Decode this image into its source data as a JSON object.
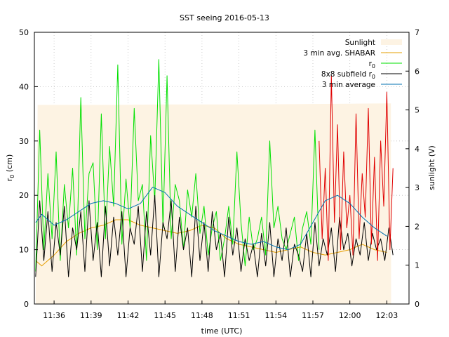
{
  "chart_data": {
    "type": "line",
    "title": "SST seeing 2016-05-13",
    "xlabel": "time (UTC)",
    "ylabel": "r0 (cm)",
    "ylabel_main": "r",
    "ylabel_sub": "0",
    "ylabel_tail": " (cm)",
    "y2label": "sunlight (V)",
    "xlim": [
      "11:34:24",
      "12:04:48"
    ],
    "ylim": [
      0,
      50
    ],
    "y2lim": [
      0,
      7
    ],
    "xticks": [
      "11:36",
      "11:39",
      "11:42",
      "11:45",
      "11:48",
      "11:51",
      "11:54",
      "11:57",
      "12:00",
      "12:03"
    ],
    "yticks": [
      0,
      10,
      20,
      30,
      40,
      50
    ],
    "y2ticks": [
      0,
      1,
      2,
      3,
      4,
      5,
      6,
      7
    ],
    "grid": true,
    "legend": "top-right",
    "legend_entries": [
      {
        "label": "Sunlight",
        "sub": "",
        "color": "#fdf3e3",
        "kind": "box"
      },
      {
        "label": "3 min avg. SHABAR",
        "sub": "",
        "color": "#e69f00",
        "kind": "line"
      },
      {
        "label": "r",
        "sub": "0",
        "color": "#00e000",
        "kind": "line"
      },
      {
        "label": "8x8 subfield r",
        "sub": "0",
        "color": "#000000",
        "kind": "line"
      },
      {
        "label": "3 min average",
        "sub": "",
        "color": "#0072b2",
        "kind": "line"
      }
    ],
    "series": [
      {
        "name": "Sunlight",
        "axis": "y2",
        "color": "#fdf3e3",
        "x": [
          "11:34:30",
          "11:34:40",
          "11:41:00",
          "11:45:00",
          "11:48:00",
          "11:52:00",
          "11:56:00",
          "12:00:00",
          "12:03:00",
          "12:03:20",
          "12:03:21"
        ],
        "values": [
          0,
          5.13,
          5.13,
          5.14,
          5.14,
          5.14,
          5.15,
          5.16,
          5.17,
          5.17,
          0
        ]
      },
      {
        "name": "3 min avg. SHABAR",
        "axis": "y",
        "color": "#e69f00",
        "x": [
          "11:34:30",
          "11:35:00",
          "11:36:00",
          "11:37:00",
          "11:38:00",
          "11:39:00",
          "11:40:00",
          "11:41:00",
          "11:42:00",
          "11:43:00",
          "11:44:00",
          "11:45:00",
          "11:46:00",
          "11:47:00",
          "11:48:00",
          "11:49:00",
          "11:50:00",
          "11:51:00",
          "11:52:00",
          "11:53:00",
          "11:54:00",
          "11:55:00",
          "11:56:00",
          "11:57:00",
          "11:58:00",
          "11:59:00",
          "12:00:00",
          "12:01:00",
          "12:02:00",
          "12:03:00"
        ],
        "values": [
          8.0,
          7.0,
          9.0,
          11.5,
          13.0,
          14.0,
          14.5,
          15.5,
          15.5,
          14.5,
          14.0,
          13.5,
          13.0,
          13.5,
          14.5,
          14.0,
          12.0,
          11.0,
          10.5,
          10.0,
          9.5,
          10.0,
          10.5,
          9.5,
          9.0,
          9.5,
          10.0,
          11.0,
          10.0,
          9.5
        ]
      },
      {
        "name": "r0",
        "axis": "y",
        "color": "#00e000",
        "x": [
          "11:34:30",
          "11:34:50",
          "11:35:10",
          "11:35:30",
          "11:35:50",
          "11:36:10",
          "11:36:30",
          "11:36:50",
          "11:37:10",
          "11:37:30",
          "11:37:50",
          "11:38:10",
          "11:38:30",
          "11:38:50",
          "11:39:10",
          "11:39:30",
          "11:39:50",
          "11:40:10",
          "11:40:30",
          "11:40:50",
          "11:41:10",
          "11:41:30",
          "11:41:50",
          "11:42:10",
          "11:42:30",
          "11:42:50",
          "11:43:10",
          "11:43:30",
          "11:43:50",
          "11:44:10",
          "11:44:30",
          "11:44:50",
          "11:45:10",
          "11:45:30",
          "11:45:50",
          "11:46:10",
          "11:46:30",
          "11:46:50",
          "11:47:10",
          "11:47:30",
          "11:47:50",
          "11:48:10",
          "11:48:30",
          "11:48:50",
          "11:49:10",
          "11:49:30",
          "11:49:50",
          "11:50:10",
          "11:50:30",
          "11:50:50",
          "11:51:10",
          "11:51:30",
          "11:51:50",
          "11:52:10",
          "11:52:30",
          "11:52:50",
          "11:53:10",
          "11:53:30",
          "11:53:50",
          "11:54:10",
          "11:54:30",
          "11:54:50",
          "11:55:10",
          "11:55:30",
          "11:55:50",
          "11:56:10",
          "11:56:30",
          "11:56:50",
          "11:57:10",
          "11:57:30"
        ],
        "values": [
          6,
          32,
          10,
          24,
          12,
          28,
          8,
          22,
          14,
          25,
          9,
          38,
          12,
          24,
          26,
          10,
          35,
          12,
          29,
          18,
          44,
          11,
          23,
          14,
          36,
          19,
          22,
          8,
          31,
          19,
          45,
          14,
          42,
          12,
          22,
          19,
          10,
          21,
          16,
          24,
          13,
          18,
          9,
          14,
          17,
          8,
          12,
          18,
          11,
          28,
          15,
          7,
          16,
          10,
          12,
          16,
          9,
          30,
          14,
          18,
          12,
          10,
          13,
          16,
          8,
          14,
          17,
          11,
          32,
          10
        ]
      },
      {
        "name": "8x8 subfield r0",
        "axis": "y",
        "color": "#000000",
        "x": [
          "11:34:30",
          "11:34:50",
          "11:35:10",
          "11:35:30",
          "11:35:50",
          "11:36:10",
          "11:36:30",
          "11:36:50",
          "11:37:10",
          "11:37:30",
          "11:37:50",
          "11:38:10",
          "11:38:30",
          "11:38:50",
          "11:39:10",
          "11:39:30",
          "11:39:50",
          "11:40:10",
          "11:40:30",
          "11:40:50",
          "11:41:10",
          "11:41:30",
          "11:41:50",
          "11:42:10",
          "11:42:30",
          "11:42:50",
          "11:43:10",
          "11:43:30",
          "11:43:50",
          "11:44:10",
          "11:44:30",
          "11:44:50",
          "11:45:10",
          "11:45:30",
          "11:45:50",
          "11:46:10",
          "11:46:30",
          "11:46:50",
          "11:47:10",
          "11:47:30",
          "11:47:50",
          "11:48:10",
          "11:48:30",
          "11:48:50",
          "11:49:10",
          "11:49:30",
          "11:49:50",
          "11:50:10",
          "11:50:30",
          "11:50:50",
          "11:51:10",
          "11:51:30",
          "11:51:50",
          "11:52:10",
          "11:52:30",
          "11:52:50",
          "11:53:10",
          "11:53:30",
          "11:53:50",
          "11:54:10",
          "11:54:30",
          "11:54:50",
          "11:55:10",
          "11:55:30",
          "11:55:50",
          "11:56:10",
          "11:56:30",
          "11:56:50",
          "11:57:10",
          "11:57:30",
          "11:57:50",
          "11:58:10",
          "11:58:30",
          "11:58:50",
          "11:59:10",
          "11:59:30",
          "11:59:50",
          "12:00:10",
          "12:00:30",
          "12:00:50",
          "12:01:10",
          "12:01:30",
          "12:01:50",
          "12:02:10",
          "12:02:30",
          "12:02:50",
          "12:03:10",
          "12:03:30"
        ],
        "values": [
          5,
          19,
          8,
          17,
          6,
          15,
          9,
          18,
          5,
          14,
          10,
          17,
          6,
          19,
          8,
          15,
          5,
          18,
          7,
          16,
          9,
          17,
          5,
          14,
          11,
          18,
          6,
          17,
          9,
          20,
          5,
          15,
          12,
          19,
          6,
          16,
          10,
          14,
          5,
          18,
          8,
          15,
          6,
          17,
          10,
          13,
          5,
          16,
          9,
          14,
          6,
          12,
          8,
          11,
          5,
          13,
          7,
          15,
          5,
          12,
          8,
          14,
          5,
          11,
          9,
          6,
          13,
          5,
          15,
          7,
          12,
          9,
          14,
          6,
          16,
          10,
          13,
          7,
          12,
          9,
          15,
          8,
          13,
          10,
          12,
          8,
          14,
          9
        ]
      },
      {
        "name": "8x8 subfield r0 (red)",
        "axis": "y",
        "color": "#e00000",
        "x": [
          "11:57:30",
          "11:57:45",
          "11:58:00",
          "11:58:15",
          "11:58:30",
          "11:58:45",
          "11:59:00",
          "11:59:15",
          "11:59:30",
          "11:59:45",
          "12:00:00",
          "12:00:15",
          "12:00:30",
          "12:00:45",
          "12:01:00",
          "12:01:15",
          "12:01:30",
          "12:01:45",
          "12:02:00",
          "12:02:15",
          "12:02:30",
          "12:02:45",
          "12:03:00",
          "12:03:15",
          "12:03:30"
        ],
        "values": [
          30,
          12,
          25,
          8,
          42,
          15,
          33,
          10,
          28,
          14,
          20,
          9,
          35,
          12,
          24,
          16,
          36,
          11,
          27,
          8,
          30,
          18,
          39,
          10,
          25
        ]
      },
      {
        "name": "3 min average",
        "axis": "y",
        "color": "#0072b2",
        "x": [
          "11:34:30",
          "11:35:00",
          "11:36:00",
          "11:37:00",
          "11:38:00",
          "11:39:00",
          "11:40:00",
          "11:41:00",
          "11:42:00",
          "11:43:00",
          "11:44:00",
          "11:45:00",
          "11:46:00",
          "11:47:00",
          "11:48:00",
          "11:49:00",
          "11:50:00",
          "11:51:00",
          "11:52:00",
          "11:53:00",
          "11:54:00",
          "11:55:00",
          "11:56:00",
          "11:57:00",
          "11:58:00",
          "11:59:00",
          "12:00:00",
          "12:01:00",
          "12:02:00",
          "12:03:00"
        ],
        "values": [
          15.0,
          16.5,
          14.5,
          15.5,
          17.0,
          18.5,
          19.0,
          18.5,
          17.5,
          18.5,
          21.5,
          20.5,
          18.0,
          16.5,
          15.0,
          13.5,
          12.5,
          11.5,
          11.0,
          11.5,
          10.5,
          10.0,
          11.0,
          15.0,
          19.0,
          20.0,
          18.5,
          16.0,
          14.0,
          12.5
        ]
      }
    ]
  }
}
